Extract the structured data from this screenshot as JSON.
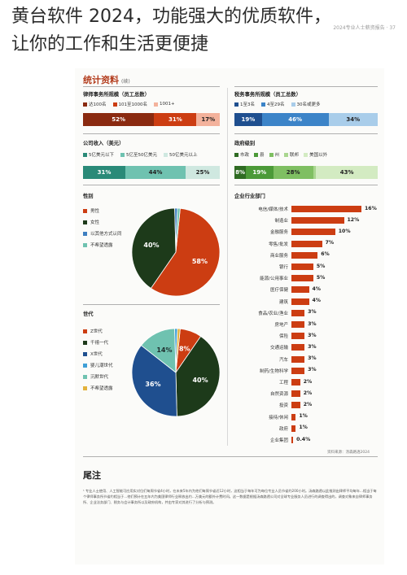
{
  "header": {
    "line1": "黄台软件 2024，功能强大的优质软件，",
    "line2": "让你的工作和生活更便捷",
    "watermark": "2024专业人士薪资报告 · 37"
  },
  "section": {
    "title": "统计资料",
    "subtitle": "(续)"
  },
  "firm_size": {
    "title": "律师事务所规模（员工总数）",
    "legend": [
      {
        "label": "达100名",
        "color": "#8a2a10"
      },
      {
        "label": "101至1000名",
        "color": "#cc3d12"
      },
      {
        "label": "1001+",
        "color": "#f3b29c"
      }
    ],
    "segments": [
      {
        "label": "52%",
        "value": 52,
        "color": "#8a2a10"
      },
      {
        "label": "31%",
        "value": 31,
        "color": "#cc3d12"
      },
      {
        "label": "17%",
        "value": 17,
        "color": "#f3b29c"
      }
    ]
  },
  "revenue": {
    "title": "公司收入（美元）",
    "legend": [
      {
        "label": "5亿美元以下",
        "color": "#2a8a78"
      },
      {
        "label": "5亿至50亿美元",
        "color": "#6fc2b0"
      },
      {
        "label": "50亿美元以上",
        "color": "#cfe8e0"
      }
    ],
    "segments": [
      {
        "label": "31%",
        "value": 31,
        "color": "#2a8a78"
      },
      {
        "label": "44%",
        "value": 44,
        "color": "#6fc2b0"
      },
      {
        "label": "25%",
        "value": 25,
        "color": "#cfe8e0"
      }
    ]
  },
  "tax_firm": {
    "title": "税务事务所规模（员工总数）",
    "legend": [
      {
        "label": "1至3名",
        "color": "#1f4f8f"
      },
      {
        "label": "4至29名",
        "color": "#3c84c8"
      },
      {
        "label": "30名或更多",
        "color": "#a9cdea"
      }
    ],
    "segments": [
      {
        "label": "19%",
        "value": 19,
        "color": "#1f4f8f"
      },
      {
        "label": "46%",
        "value": 46,
        "color": "#3c84c8"
      },
      {
        "label": "34%",
        "value": 34,
        "color": "#a9cdea"
      }
    ]
  },
  "gov_level": {
    "title": "政府级别",
    "legend": [
      {
        "label": "市政",
        "color": "#2f6b22"
      },
      {
        "label": "县",
        "color": "#4c9a38"
      },
      {
        "label": "州",
        "color": "#7fbf62"
      },
      {
        "label": "联邦",
        "color": "#a9d68f"
      },
      {
        "label": "美国以外",
        "color": "#d3ebc2"
      }
    ],
    "segments": [
      {
        "label": "8%",
        "value": 8,
        "color": "#2f6b22"
      },
      {
        "label": "19%",
        "value": 19,
        "color": "#4c9a38"
      },
      {
        "label": "28%",
        "value": 28,
        "color": "#7fbf62"
      },
      {
        "label": "",
        "value": 2,
        "color": "#a9d68f"
      },
      {
        "label": "43%",
        "value": 43,
        "color": "#d3ebc2"
      }
    ]
  },
  "gender": {
    "title": "性别",
    "legend": [
      {
        "label": "男性",
        "color": "#cc3d12"
      },
      {
        "label": "女性",
        "color": "#1d3a1a"
      },
      {
        "label": "以其他方式认同",
        "color": "#3e7fc0"
      },
      {
        "label": "不希望透露",
        "color": "#6fc2b0"
      }
    ],
    "slices": [
      {
        "label": "58%",
        "value": 58,
        "color": "#cc3d12"
      },
      {
        "label": "40%",
        "value": 40,
        "color": "#1d3a1a"
      },
      {
        "label": "",
        "value": 1,
        "color": "#3e7fc0"
      },
      {
        "label": "",
        "value": 1,
        "color": "#6fc2b0"
      }
    ]
  },
  "generation": {
    "title": "世代",
    "legend": [
      {
        "label": "Z世代",
        "color": "#cc3d12"
      },
      {
        "label": "千禧一代",
        "color": "#1d3a1a"
      },
      {
        "label": "X世代",
        "color": "#1f4f8f"
      },
      {
        "label": "婴儿潮世代",
        "color": "#3e9fd6"
      },
      {
        "label": "沉默世代",
        "color": "#6fc2b0"
      },
      {
        "label": "不希望透露",
        "color": "#e3b23c"
      }
    ],
    "slices": [
      {
        "label": "8%",
        "value": 8,
        "color": "#cc3d12"
      },
      {
        "label": "40%",
        "value": 40,
        "color": "#1d3a1a"
      },
      {
        "label": "36%",
        "value": 36,
        "color": "#1f4f8f"
      },
      {
        "label": "14%",
        "value": 14,
        "color": "#6fc2b0"
      },
      {
        "label": "",
        "value": 1,
        "color": "#3e9fd6"
      },
      {
        "label": "",
        "value": 1,
        "color": "#e3b23c"
      }
    ]
  },
  "industry": {
    "title": "企业行业部门",
    "rows": [
      {
        "label": "电信/媒体/技术",
        "value": 16,
        "display": "16%"
      },
      {
        "label": "制造业",
        "value": 12,
        "display": "12%"
      },
      {
        "label": "金融服务",
        "value": 10,
        "display": "10%"
      },
      {
        "label": "零售/批发",
        "value": 7,
        "display": "7%"
      },
      {
        "label": "商业服务",
        "value": 6,
        "display": "6%"
      },
      {
        "label": "银行",
        "value": 5,
        "display": "5%"
      },
      {
        "label": "能源/公用事业",
        "value": 5,
        "display": "5%"
      },
      {
        "label": "医疗保健",
        "value": 4,
        "display": "4%"
      },
      {
        "label": "建筑",
        "value": 4,
        "display": "4%"
      },
      {
        "label": "食品/农业/渔业",
        "value": 3,
        "display": "3%"
      },
      {
        "label": "房地产",
        "value": 3,
        "display": "3%"
      },
      {
        "label": "保险",
        "value": 3,
        "display": "3%"
      },
      {
        "label": "交通运输",
        "value": 3,
        "display": "3%"
      },
      {
        "label": "汽车",
        "value": 3,
        "display": "3%"
      },
      {
        "label": "制药/生物科学",
        "value": 3,
        "display": "3%"
      },
      {
        "label": "工程",
        "value": 2,
        "display": "2%"
      },
      {
        "label": "自然资源",
        "value": 2,
        "display": "2%"
      },
      {
        "label": "投资",
        "value": 2,
        "display": "2%"
      },
      {
        "label": "接待/休闲",
        "value": 1,
        "display": "1%"
      },
      {
        "label": "政府",
        "value": 1,
        "display": "1%"
      },
      {
        "label": "企业集团",
        "value": 0.4,
        "display": "0.4%"
      }
    ],
    "source": "资料来源：汤森路透2024"
  },
  "notes": {
    "title": "尾注",
    "text": "¹ 专业人士使用、人工智能可应用实对位们每周节省4小时，在未来5年内为他们每周节省近12小时，这相当于每年可为每位专业人员节省约200小时。汤森路透以此推测出律师平均每年...相当于每个律师事务所节省约相当于...他们预计在五年内为美国律师行业释放出约...万美元的额外计费时间。这一数据是根据汤森路透公司对全球专业服务人员进行的调查得出的，调查对象来自律师事务所、企业法务部门、税务与会计事务所以及政府机构，并由专家对其进行了分析与预测。"
  }
}
